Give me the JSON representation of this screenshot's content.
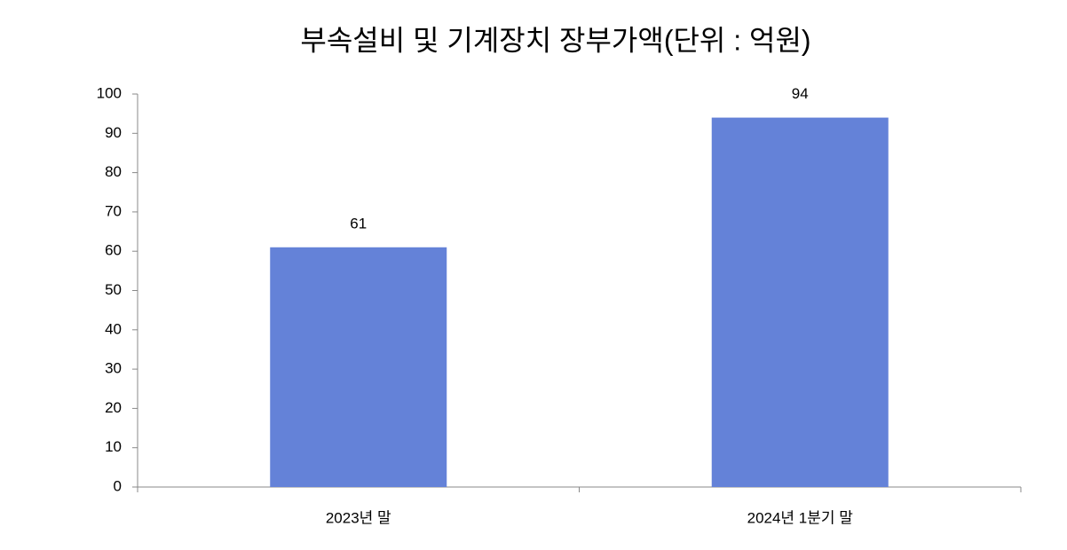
{
  "chart_data": {
    "type": "bar",
    "title": "부속설비 및 기계장치 장부가액(단위 : 억원)",
    "categories": [
      "2023년 말",
      "2024년 1분기 말"
    ],
    "values": [
      61,
      94
    ],
    "color": "#6482d8",
    "ylim": [
      0,
      100
    ],
    "yticks": [
      0,
      10,
      20,
      30,
      40,
      50,
      60,
      70,
      80,
      90,
      100
    ],
    "grid": false
  }
}
